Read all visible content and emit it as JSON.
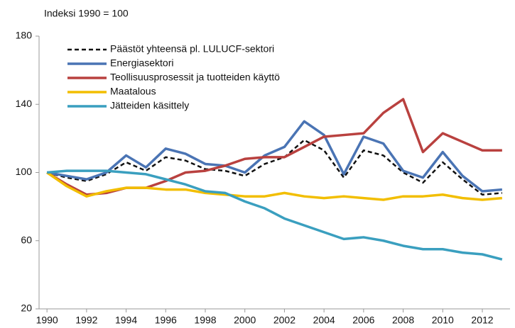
{
  "chart_data": {
    "type": "line",
    "title": "Indeksi 1990 = 100",
    "x": [
      1990,
      1991,
      1992,
      1993,
      1994,
      1995,
      1996,
      1997,
      1998,
      1999,
      2000,
      2001,
      2002,
      2003,
      2004,
      2005,
      2006,
      2007,
      2008,
      2009,
      2010,
      2011,
      2012,
      2013
    ],
    "series": [
      {
        "name": "Päästöt yhteensä pl. LULUCF-sektori",
        "color": "#111111",
        "dashed": true,
        "values": [
          100,
          97,
          95,
          99,
          106,
          101,
          109,
          107,
          102,
          101,
          98,
          105,
          109,
          119,
          113,
          97,
          113,
          110,
          100,
          94,
          106,
          96,
          87,
          88
        ]
      },
      {
        "name": "Energiasektori",
        "color": "#4a74b4",
        "dashed": false,
        "values": [
          100,
          98,
          96,
          100,
          110,
          103,
          114,
          111,
          105,
          104,
          100,
          110,
          115,
          130,
          122,
          99,
          121,
          117,
          101,
          97,
          112,
          98,
          89,
          90
        ]
      },
      {
        "name": "Teollisuusprosessit ja tuotteiden käyttö",
        "color": "#b9413f",
        "dashed": false,
        "values": [
          100,
          93,
          87,
          88,
          91,
          91,
          95,
          100,
          101,
          104,
          108,
          109,
          109,
          115,
          121,
          122,
          123,
          135,
          143,
          112,
          123,
          118,
          113,
          113
        ]
      },
      {
        "name": "Maatalous",
        "color": "#f2be00",
        "dashed": false,
        "values": [
          100,
          92,
          86,
          89,
          91,
          91,
          90,
          90,
          88,
          87,
          86,
          86,
          88,
          86,
          85,
          86,
          85,
          84,
          86,
          86,
          87,
          85,
          84,
          85
        ]
      },
      {
        "name": "Jätteiden käsittely",
        "color": "#3a9fbf",
        "dashed": false,
        "values": [
          100,
          101,
          101,
          101,
          100,
          99,
          96,
          93,
          89,
          88,
          83,
          79,
          73,
          69,
          65,
          61,
          62,
          60,
          57,
          55,
          55,
          53,
          52,
          49
        ]
      }
    ],
    "xlim": [
      1989.6,
      2013.4
    ],
    "xticks": [
      1990,
      1992,
      1994,
      1996,
      1998,
      2000,
      2002,
      2004,
      2006,
      2008,
      2010,
      2012
    ],
    "ylim": [
      20,
      180
    ],
    "yticks": [
      20,
      60,
      100,
      140,
      180
    ],
    "grid": false,
    "legend": "top-left"
  }
}
